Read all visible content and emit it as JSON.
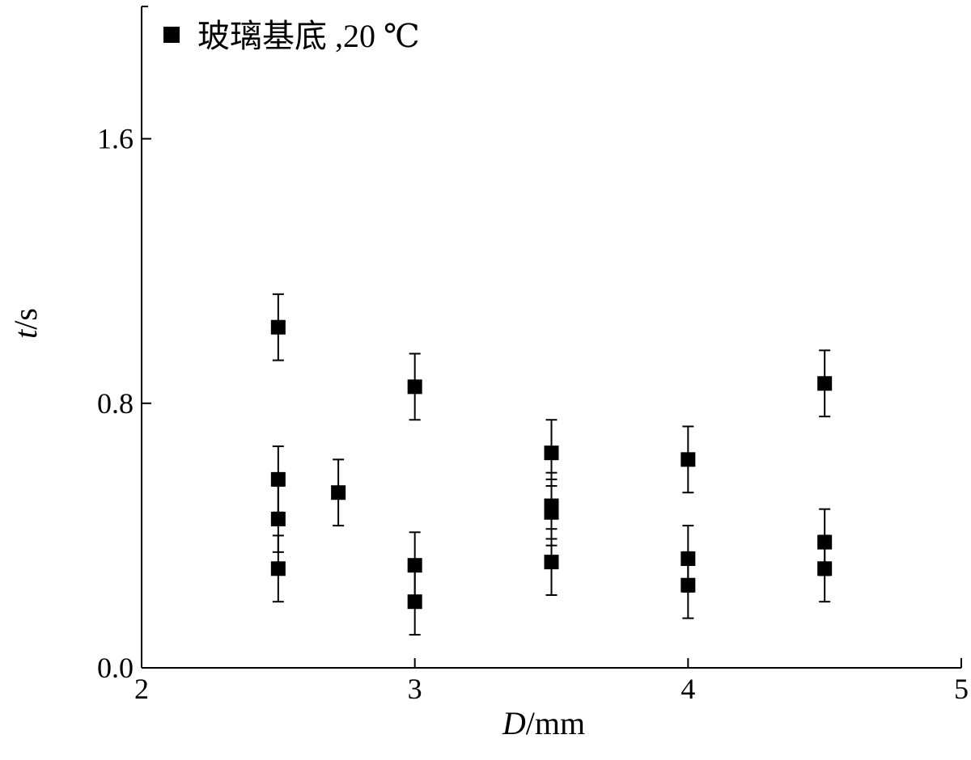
{
  "chart_data": {
    "type": "scatter",
    "title": "",
    "xlabel": {
      "var": "D",
      "unit": "mm"
    },
    "ylabel": {
      "var": "t",
      "unit": "s"
    },
    "xlim": [
      2,
      5
    ],
    "ylim": [
      0,
      2.0
    ],
    "x_ticks": [
      2,
      3,
      4,
      5
    ],
    "x_tick_labels": [
      "2",
      "3",
      "4",
      "5"
    ],
    "y_ticks": [
      0.0,
      0.8,
      1.6
    ],
    "y_tick_labels": [
      "0.0",
      "0.8",
      "1.6"
    ],
    "grid": false,
    "legend": {
      "position": "top-left",
      "marker": "square"
    },
    "series": [
      {
        "name": "玻璃基底 ,20 ℃",
        "color": "#000000",
        "marker": "square",
        "points": [
          {
            "x": 2.5,
            "y": 1.03,
            "err": 0.1
          },
          {
            "x": 2.5,
            "y": 0.57,
            "err": 0.1
          },
          {
            "x": 2.5,
            "y": 0.45,
            "err": 0.1
          },
          {
            "x": 2.5,
            "y": 0.3,
            "err": 0.1
          },
          {
            "x": 2.72,
            "y": 0.53,
            "err": 0.1
          },
          {
            "x": 3.0,
            "y": 0.85,
            "err": 0.1
          },
          {
            "x": 3.0,
            "y": 0.31,
            "err": 0.1
          },
          {
            "x": 3.0,
            "y": 0.2,
            "err": 0.1
          },
          {
            "x": 3.5,
            "y": 0.65,
            "err": 0.1
          },
          {
            "x": 3.5,
            "y": 0.49,
            "err": 0.1
          },
          {
            "x": 3.5,
            "y": 0.47,
            "err": 0.1
          },
          {
            "x": 3.5,
            "y": 0.32,
            "err": 0.1
          },
          {
            "x": 4.0,
            "y": 0.63,
            "err": 0.1
          },
          {
            "x": 4.0,
            "y": 0.33,
            "err": 0.1
          },
          {
            "x": 4.0,
            "y": 0.25,
            "err": 0.1
          },
          {
            "x": 4.5,
            "y": 0.86,
            "err": 0.1
          },
          {
            "x": 4.5,
            "y": 0.38,
            "err": 0.1
          },
          {
            "x": 4.5,
            "y": 0.3,
            "err": 0.1
          }
        ]
      }
    ]
  }
}
